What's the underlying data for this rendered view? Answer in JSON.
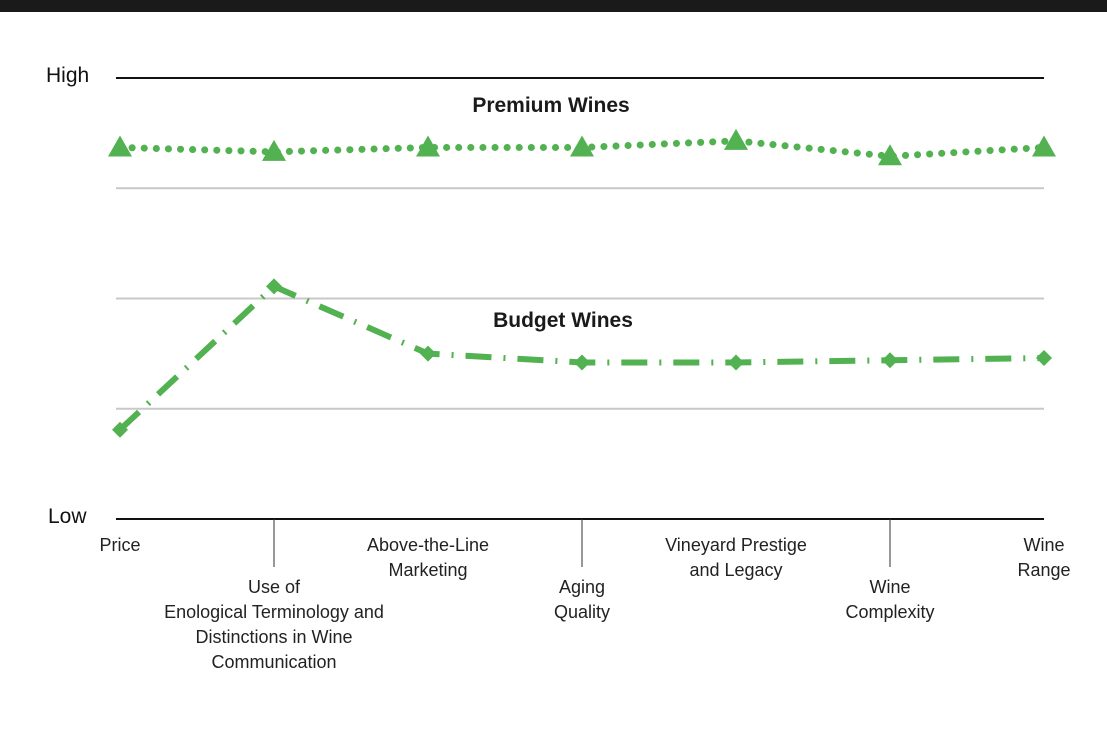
{
  "chart_data": {
    "type": "line",
    "categories": [
      "Price",
      "Use of\nEnological Terminology and\nDistinctions in Wine\nCommunication",
      "Above-the-Line\nMarketing",
      "Aging\nQuality",
      "Vineyard Prestige\nand Legacy",
      "Wine\nComplexity",
      "Wine\nRange"
    ],
    "series": [
      {
        "name": "Premium Wines",
        "color": "#52b150",
        "marker": "triangle",
        "dash": "dotted",
        "values": [
          3.37,
          3.33,
          3.37,
          3.37,
          3.43,
          3.29,
          3.37
        ]
      },
      {
        "name": "Budget Wines",
        "color": "#52b150",
        "marker": "diamond",
        "dash": "dash-dot",
        "values": [
          0.81,
          2.11,
          1.5,
          1.42,
          1.42,
          1.44,
          1.46
        ]
      }
    ],
    "ylim": [
      0,
      4
    ],
    "yticks": [
      {
        "value": 0,
        "label": "Low"
      },
      {
        "value": 4,
        "label": "High"
      }
    ],
    "grid_lines": [
      1,
      2,
      3
    ]
  }
}
